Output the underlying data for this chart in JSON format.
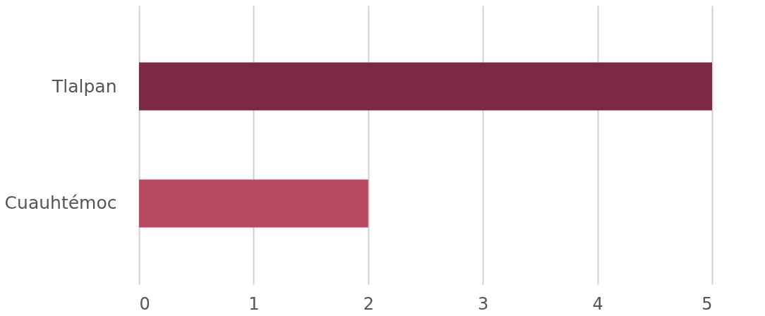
{
  "chart_data": {
    "type": "bar",
    "orientation": "horizontal",
    "categories": [
      "Tlalpan",
      "Cuauhtémoc"
    ],
    "values": [
      5,
      2
    ],
    "colors": [
      "#7a2843",
      "#b84a60"
    ],
    "xlim": [
      0,
      5
    ],
    "xticks": [
      0,
      1,
      2,
      3,
      4,
      5
    ],
    "grid": "x"
  }
}
